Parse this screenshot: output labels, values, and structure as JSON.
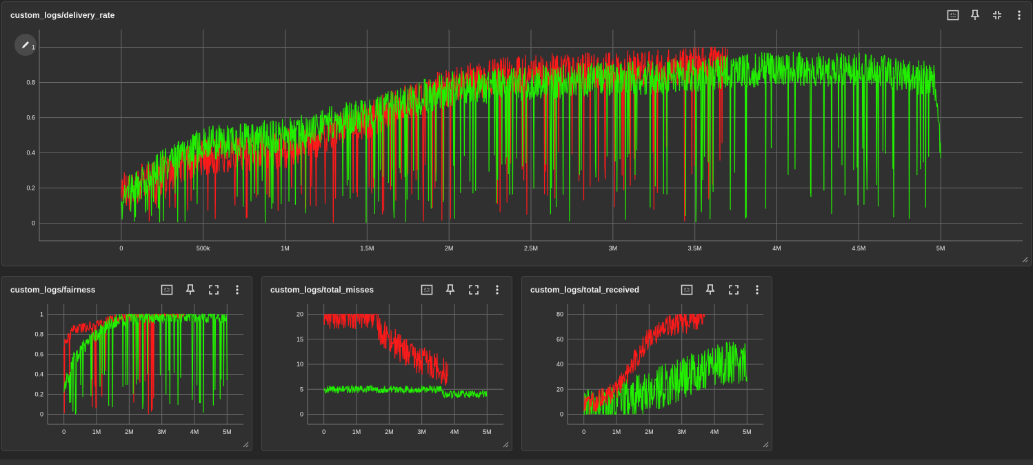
{
  "colors": {
    "background": "#262626",
    "card": "#303030",
    "grid": "#6a6a6a",
    "series_red": "#ff1a1a",
    "series_green": "#22ee00"
  },
  "cards": {
    "delivery_rate": {
      "title": "custom_logs/delivery_rate"
    },
    "fairness": {
      "title": "custom_logs/fairness"
    },
    "total_misses": {
      "title": "custom_logs/total_misses"
    },
    "total_received": {
      "title": "custom_logs/total_received"
    }
  },
  "toolbar_icons": [
    "fit-domain-icon",
    "pin-icon",
    "fullscreen-icon",
    "more-vert-icon"
  ],
  "chart_data": [
    {
      "id": "delivery_rate",
      "type": "line",
      "title": "custom_logs/delivery_rate",
      "xlabel": "",
      "ylabel": "",
      "xlim": [
        -500000,
        5500000
      ],
      "ylim": [
        -0.1,
        1.1
      ],
      "xticks": [
        0,
        500000,
        1000000,
        1500000,
        2000000,
        2500000,
        3000000,
        3500000,
        4000000,
        4500000,
        5000000
      ],
      "xtick_labels": [
        "0",
        "500k",
        "1M",
        "1.5M",
        "2M",
        "2.5M",
        "3M",
        "3.5M",
        "4M",
        "4.5M",
        "5M"
      ],
      "yticks": [
        0,
        0.2,
        0.4,
        0.6,
        0.8,
        1
      ],
      "ytick_labels": [
        "0",
        "0.2",
        "0.4",
        "0.6",
        "0.8",
        "1"
      ],
      "grid": true,
      "series": [
        {
          "color": "#ff1a1a",
          "noise": 0.22,
          "dips": 0.06,
          "points": [
            [
              0,
              0.2
            ],
            [
              200000,
              0.25
            ],
            [
              500000,
              0.38
            ],
            [
              1000000,
              0.42
            ],
            [
              1500000,
              0.58
            ],
            [
              1800000,
              0.72
            ],
            [
              2200000,
              0.82
            ],
            [
              2600000,
              0.86
            ],
            [
              3000000,
              0.87
            ],
            [
              3400000,
              0.88
            ],
            [
              3600000,
              0.93
            ],
            [
              3700000,
              0.9
            ]
          ]
        },
        {
          "color": "#22ee00",
          "noise": 0.2,
          "dips": 0.08,
          "points": [
            [
              0,
              0.15
            ],
            [
              250000,
              0.32
            ],
            [
              500000,
              0.45
            ],
            [
              1000000,
              0.5
            ],
            [
              1500000,
              0.62
            ],
            [
              2000000,
              0.76
            ],
            [
              2500000,
              0.8
            ],
            [
              3000000,
              0.82
            ],
            [
              3500000,
              0.84
            ],
            [
              4000000,
              0.88
            ],
            [
              4500000,
              0.87
            ],
            [
              4960000,
              0.82
            ],
            [
              5000000,
              0.45
            ]
          ]
        }
      ]
    },
    {
      "id": "fairness",
      "type": "line",
      "title": "custom_logs/fairness",
      "xlabel": "",
      "ylabel": "",
      "xlim": [
        -500000,
        5500000
      ],
      "ylim": [
        -0.1,
        1.1
      ],
      "xticks": [
        0,
        1000000,
        2000000,
        3000000,
        4000000,
        5000000
      ],
      "xtick_labels": [
        "0",
        "1M",
        "2M",
        "3M",
        "4M",
        "5M"
      ],
      "yticks": [
        0,
        0.2,
        0.4,
        0.6,
        0.8,
        1
      ],
      "ytick_labels": [
        "0",
        "0.2",
        "0.4",
        "0.6",
        "0.8",
        "1"
      ],
      "grid": true,
      "series": [
        {
          "color": "#ff1a1a",
          "noise": 0.1,
          "dips": 0.05,
          "points": [
            [
              0,
              0.7
            ],
            [
              300000,
              0.85
            ],
            [
              800000,
              0.88
            ],
            [
              1500000,
              0.95
            ],
            [
              2500000,
              0.99
            ],
            [
              3700000,
              1.0
            ]
          ]
        },
        {
          "color": "#22ee00",
          "noise": 0.15,
          "dips": 0.1,
          "points": [
            [
              0,
              0.25
            ],
            [
              300000,
              0.55
            ],
            [
              800000,
              0.75
            ],
            [
              1500000,
              0.93
            ],
            [
              2500000,
              0.98
            ],
            [
              4000000,
              0.99
            ],
            [
              5000000,
              0.98
            ]
          ]
        }
      ]
    },
    {
      "id": "total_misses",
      "type": "line",
      "title": "custom_logs/total_misses",
      "xlabel": "",
      "ylabel": "",
      "xlim": [
        -500000,
        5500000
      ],
      "ylim": [
        -2,
        22
      ],
      "xticks": [
        0,
        1000000,
        2000000,
        3000000,
        4000000,
        5000000
      ],
      "xtick_labels": [
        "0",
        "1M",
        "2M",
        "3M",
        "4M",
        "5M"
      ],
      "yticks": [
        0,
        5,
        10,
        15,
        20
      ],
      "ytick_labels": [
        "0",
        "5",
        "10",
        "15",
        "20"
      ],
      "grid": true,
      "series": [
        {
          "color": "#ff1a1a",
          "noise": 6,
          "dips": 0.0,
          "points": [
            [
              0,
              20
            ],
            [
              1600000,
              20
            ],
            [
              1700000,
              17
            ],
            [
              2200000,
              14
            ],
            [
              2800000,
              11
            ],
            [
              3400000,
              10
            ],
            [
              3800000,
              8
            ]
          ]
        },
        {
          "color": "#22ee00",
          "noise": 1.5,
          "dips": 0.0,
          "points": [
            [
              0,
              5
            ],
            [
              3600000,
              5
            ],
            [
              3700000,
              4
            ],
            [
              4400000,
              4
            ],
            [
              5000000,
              4
            ]
          ]
        }
      ]
    },
    {
      "id": "total_received",
      "type": "line",
      "title": "custom_logs/total_received",
      "xlabel": "",
      "ylabel": "",
      "xlim": [
        -500000,
        5500000
      ],
      "ylim": [
        -8,
        88
      ],
      "xticks": [
        0,
        1000000,
        2000000,
        3000000,
        4000000,
        5000000
      ],
      "xtick_labels": [
        "0",
        "1M",
        "2M",
        "3M",
        "4M",
        "5M"
      ],
      "yticks": [
        0,
        20,
        40,
        60,
        80
      ],
      "ytick_labels": [
        "0",
        "20",
        "40",
        "60",
        "80"
      ],
      "grid": true,
      "series": [
        {
          "color": "#22ee00",
          "noise": 35,
          "dips": 0.0,
          "points": [
            [
              0,
              2
            ],
            [
              1000000,
              8
            ],
            [
              2000000,
              18
            ],
            [
              3000000,
              28
            ],
            [
              4000000,
              40
            ],
            [
              5000000,
              42
            ]
          ]
        },
        {
          "color": "#ff1a1a",
          "noise": 18,
          "dips": 0.0,
          "points": [
            [
              0,
              5
            ],
            [
              1000000,
              20
            ],
            [
              1500000,
              40
            ],
            [
              2000000,
              62
            ],
            [
              2500000,
              70
            ],
            [
              3000000,
              72
            ],
            [
              3700000,
              78
            ]
          ]
        }
      ]
    }
  ]
}
